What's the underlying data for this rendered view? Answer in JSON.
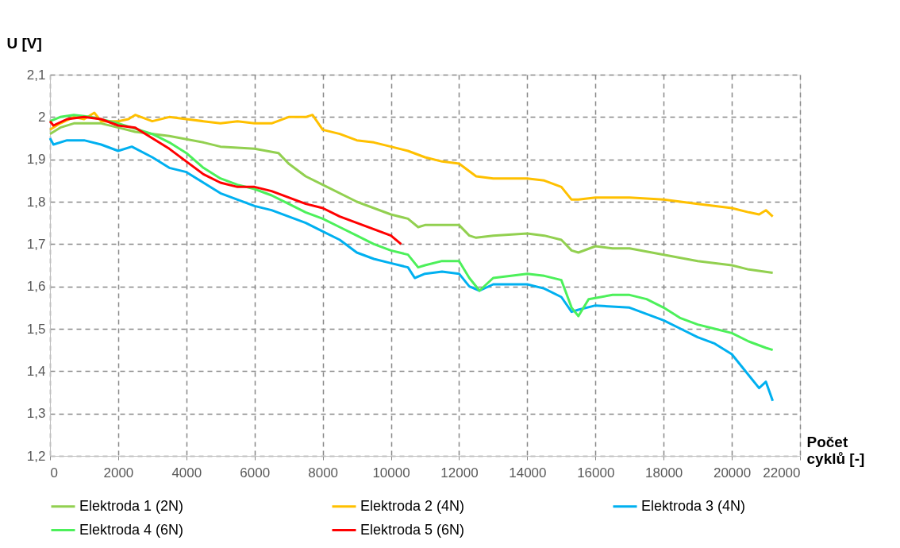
{
  "chart_data": {
    "type": "line",
    "xlabel": "Počet cyklů [-]",
    "ylabel": "U [V]",
    "xlim": [
      0,
      22000
    ],
    "xticks": [
      0,
      2000,
      4000,
      6000,
      8000,
      10000,
      12000,
      14000,
      16000,
      18000,
      20000,
      22000
    ],
    "ylim": [
      1.2,
      2.1
    ],
    "yticks": [
      {
        "value": 1.2,
        "label": "1,2"
      },
      {
        "value": 1.3,
        "label": "1,3"
      },
      {
        "value": 1.4,
        "label": "1,4"
      },
      {
        "value": 1.5,
        "label": "1,5"
      },
      {
        "value": 1.6,
        "label": "1,6"
      },
      {
        "value": 1.7,
        "label": "1,7"
      },
      {
        "value": 1.8,
        "label": "1,8"
      },
      {
        "value": 1.9,
        "label": "1,9"
      },
      2,
      {
        "value": 2.1,
        "label": "2,1"
      }
    ],
    "grid": true,
    "legend": "bottom",
    "marker": "none",
    "line_style": "solid",
    "series": [
      {
        "name": "Elektroda 1 (2N)",
        "color": "#92d050",
        "x": [
          0,
          300,
          700,
          1500,
          2000,
          2500,
          3500,
          4500,
          5000,
          6000,
          6700,
          7000,
          7500,
          8000,
          9000,
          10000,
          10500,
          10800,
          11000,
          12000,
          12300,
          12500,
          13000,
          14000,
          14500,
          15000,
          15300,
          15500,
          16000,
          16500,
          17000,
          18000,
          19000,
          20000,
          20500,
          21200
        ],
        "values": [
          1.96,
          1.975,
          1.985,
          1.985,
          1.975,
          1.965,
          1.955,
          1.94,
          1.93,
          1.925,
          1.915,
          1.89,
          1.86,
          1.84,
          1.8,
          1.77,
          1.76,
          1.74,
          1.745,
          1.745,
          1.72,
          1.715,
          1.72,
          1.725,
          1.72,
          1.71,
          1.685,
          1.68,
          1.695,
          1.69,
          1.69,
          1.675,
          1.66,
          1.65,
          1.64,
          1.632
        ]
      },
      {
        "name": "Elektroda 2 (4N)",
        "color": "#ffc000",
        "x": [
          0,
          300,
          700,
          1000,
          1300,
          1500,
          2000,
          2300,
          2500,
          3000,
          3500,
          4000,
          4500,
          5000,
          5500,
          6000,
          6500,
          7000,
          7500,
          7700,
          8000,
          8500,
          9000,
          9500,
          10000,
          10500,
          11000,
          11500,
          12000,
          12500,
          13000,
          14000,
          14500,
          15000,
          15300,
          15500,
          16000,
          17000,
          18000,
          19000,
          20000,
          20500,
          20800,
          21000,
          21200
        ],
        "values": [
          1.97,
          1.985,
          2.0,
          1.995,
          2.01,
          1.99,
          1.99,
          1.995,
          2.005,
          1.99,
          2.0,
          1.995,
          1.99,
          1.985,
          1.99,
          1.985,
          1.985,
          2.0,
          2.0,
          2.005,
          1.97,
          1.96,
          1.945,
          1.94,
          1.93,
          1.92,
          1.905,
          1.895,
          1.89,
          1.86,
          1.855,
          1.855,
          1.85,
          1.835,
          1.805,
          1.805,
          1.81,
          1.81,
          1.805,
          1.795,
          1.785,
          1.775,
          1.77,
          1.78,
          1.765
        ]
      },
      {
        "name": "Elektroda 3 (4N)",
        "color": "#00b0f0",
        "x": [
          0,
          100,
          500,
          1000,
          1500,
          2000,
          2400,
          3000,
          3500,
          4000,
          4500,
          5000,
          5500,
          6000,
          6500,
          7000,
          7500,
          8000,
          8500,
          9000,
          9500,
          10000,
          10500,
          10700,
          11000,
          11500,
          12000,
          12300,
          12600,
          13000,
          14000,
          14500,
          15000,
          15300,
          15500,
          16000,
          17000,
          17500,
          18000,
          18500,
          19000,
          19500,
          20000,
          20300,
          20600,
          20800,
          21000,
          21200
        ],
        "values": [
          1.95,
          1.935,
          1.945,
          1.945,
          1.935,
          1.92,
          1.93,
          1.905,
          1.88,
          1.87,
          1.845,
          1.82,
          1.805,
          1.79,
          1.78,
          1.765,
          1.75,
          1.73,
          1.71,
          1.68,
          1.665,
          1.655,
          1.645,
          1.62,
          1.63,
          1.635,
          1.63,
          1.6,
          1.59,
          1.605,
          1.605,
          1.595,
          1.575,
          1.54,
          1.545,
          1.555,
          1.55,
          1.535,
          1.52,
          1.5,
          1.48,
          1.465,
          1.44,
          1.41,
          1.38,
          1.36,
          1.375,
          1.33
        ]
      },
      {
        "name": "Elektroda 4 (6N)",
        "color": "#4cf05a",
        "x": [
          0,
          300,
          700,
          1200,
          2000,
          3000,
          3500,
          4000,
          4500,
          5000,
          5500,
          6000,
          6500,
          7000,
          7500,
          8000,
          8500,
          9000,
          9500,
          10000,
          10500,
          10800,
          11000,
          11500,
          12000,
          12300,
          12600,
          13000,
          14000,
          14500,
          15000,
          15300,
          15500,
          15800,
          16500,
          17000,
          17500,
          18000,
          18500,
          19000,
          19500,
          20000,
          20500,
          21000,
          21200
        ],
        "values": [
          1.99,
          2.0,
          2.005,
          2.0,
          1.985,
          1.96,
          1.94,
          1.915,
          1.88,
          1.855,
          1.84,
          1.83,
          1.815,
          1.795,
          1.775,
          1.76,
          1.74,
          1.72,
          1.7,
          1.685,
          1.675,
          1.645,
          1.65,
          1.66,
          1.66,
          1.62,
          1.59,
          1.62,
          1.63,
          1.625,
          1.615,
          1.55,
          1.53,
          1.57,
          1.58,
          1.58,
          1.57,
          1.55,
          1.525,
          1.51,
          1.5,
          1.49,
          1.47,
          1.455,
          1.45
        ]
      },
      {
        "name": "Elektroda 5 (6N)",
        "color": "#ff0000",
        "x": [
          0,
          100,
          500,
          1000,
          1500,
          2000,
          2500,
          3000,
          3500,
          4000,
          4500,
          5000,
          5500,
          6000,
          6500,
          7000,
          7500,
          8000,
          8500,
          9000,
          9500,
          10000,
          10300
        ],
        "values": [
          1.99,
          1.98,
          1.995,
          2.0,
          1.995,
          1.98,
          1.975,
          1.95,
          1.925,
          1.895,
          1.865,
          1.845,
          1.835,
          1.835,
          1.825,
          1.81,
          1.795,
          1.785,
          1.765,
          1.75,
          1.735,
          1.72,
          1.7
        ]
      }
    ]
  }
}
